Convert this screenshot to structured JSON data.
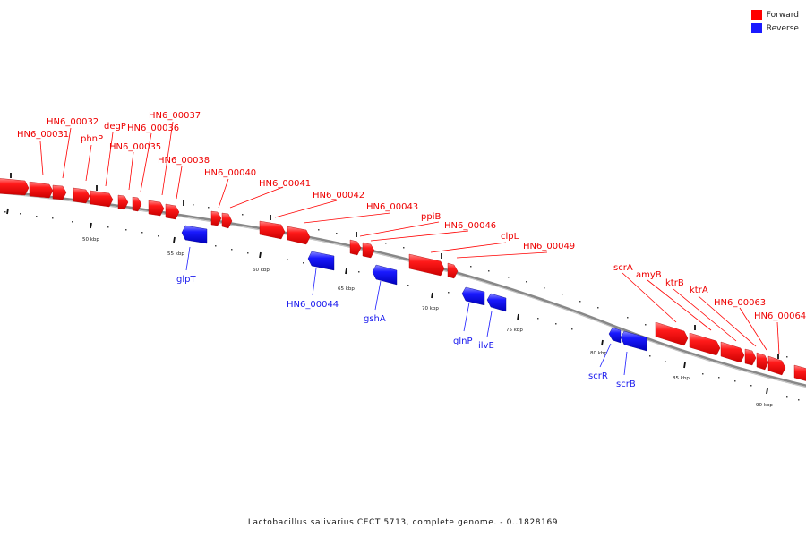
{
  "caption": "Lactobacillus salivarius CECT 5713, complete genome. - 0..1828169",
  "legend": [
    {
      "label": "Forward",
      "color": "#ff0000"
    },
    {
      "label": "Reverse",
      "color": "#1a1aff"
    }
  ],
  "colors": {
    "forward": "#ff0000",
    "reverse": "#1a1aff",
    "backbone": "#888888"
  },
  "scale_labels": [
    "50 kbp",
    "55 kbp",
    "60 kbp",
    "65 kbp",
    "70 kbp",
    "75 kbp",
    "80 kbp",
    "85 kbp",
    "90 kbp"
  ],
  "forward_genes": [
    "HN6_00031",
    "HN6_00032",
    "phnP",
    "degP",
    "HN6_00035",
    "HN6_00036",
    "HN6_00037",
    "HN6_00038",
    "HN6_00040",
    "HN6_00041",
    "HN6_00042",
    "HN6_00043",
    "ppiB",
    "HN6_00046",
    "clpL",
    "HN6_00049",
    "scrA",
    "amyB",
    "ktrB",
    "ktrA",
    "HN6_00063",
    "HN6_00064"
  ],
  "reverse_genes": [
    "glpT",
    "HN6_00044",
    "gshA",
    "glnP",
    "ilvE",
    "scrR",
    "scrB"
  ]
}
